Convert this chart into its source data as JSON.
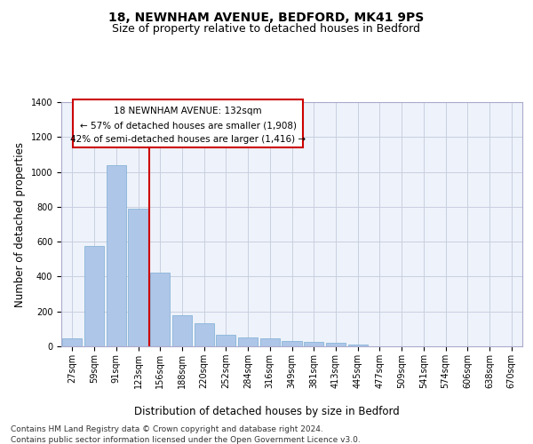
{
  "title_line1": "18, NEWNHAM AVENUE, BEDFORD, MK41 9PS",
  "title_line2": "Size of property relative to detached houses in Bedford",
  "xlabel": "Distribution of detached houses by size in Bedford",
  "ylabel": "Number of detached properties",
  "footer_line1": "Contains HM Land Registry data © Crown copyright and database right 2024.",
  "footer_line2": "Contains public sector information licensed under the Open Government Licence v3.0.",
  "annotation_line1": "18 NEWNHAM AVENUE: 132sqm",
  "annotation_line2": "← 57% of detached houses are smaller (1,908)",
  "annotation_line3": "42% of semi-detached houses are larger (1,416) →",
  "bar_labels": [
    "27sqm",
    "59sqm",
    "91sqm",
    "123sqm",
    "156sqm",
    "188sqm",
    "220sqm",
    "252sqm",
    "284sqm",
    "316sqm",
    "349sqm",
    "381sqm",
    "413sqm",
    "445sqm",
    "477sqm",
    "509sqm",
    "541sqm",
    "574sqm",
    "606sqm",
    "638sqm",
    "670sqm"
  ],
  "bar_values": [
    45,
    575,
    1040,
    790,
    425,
    180,
    130,
    65,
    50,
    45,
    30,
    27,
    20,
    10,
    0,
    0,
    0,
    0,
    0,
    0,
    0
  ],
  "bar_color": "#aec6e8",
  "bar_edge_color": "#7aaed4",
  "red_line_index": 3.5,
  "ylim": [
    0,
    1400
  ],
  "yticks": [
    0,
    200,
    400,
    600,
    800,
    1000,
    1200,
    1400
  ],
  "plot_bg_color": "#eef2fa",
  "grid_color": "#c8cfe0",
  "red_line_color": "#cc0000",
  "annotation_box_color": "#cc0000",
  "title_fontsize": 10,
  "subtitle_fontsize": 9,
  "axis_label_fontsize": 8.5,
  "tick_fontsize": 7,
  "footer_fontsize": 6.5,
  "ann_fontsize": 7.5
}
